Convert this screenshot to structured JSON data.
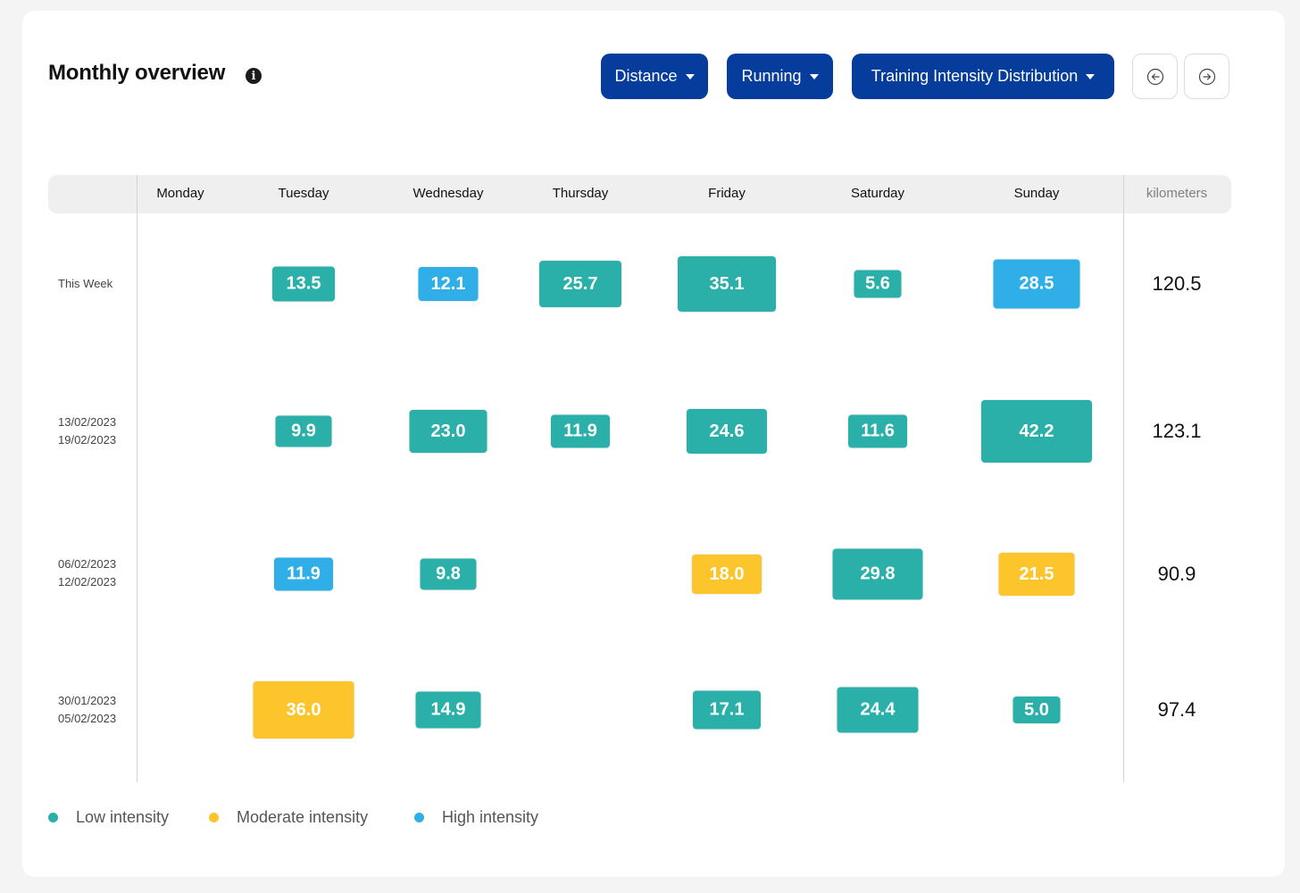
{
  "header": {
    "title": "Monthly overview",
    "info_icon": "info-icon",
    "dropdowns": [
      {
        "label": "Distance"
      },
      {
        "label": "Running"
      },
      {
        "label": "Training Intensity Distribution"
      }
    ],
    "nav_prev_icon": "arrow-left-circle-icon",
    "nav_next_icon": "arrow-right-circle-icon"
  },
  "columns": [
    "Monday",
    "Tuesday",
    "Wednesday",
    "Thursday",
    "Friday",
    "Saturday",
    "Sunday"
  ],
  "unit_label": "kilometers",
  "colors": {
    "low": "#2ab0a8",
    "moderate": "#fbc52b",
    "high": "#30aee8"
  },
  "rows": [
    {
      "label_lines": [
        "This Week"
      ],
      "total": "120.5",
      "cells": [
        {
          "day": "Tuesday",
          "value": "13.5",
          "intensity": "low"
        },
        {
          "day": "Wednesday",
          "value": "12.1",
          "intensity": "high"
        },
        {
          "day": "Thursday",
          "value": "25.7",
          "intensity": "low"
        },
        {
          "day": "Friday",
          "value": "35.1",
          "intensity": "low"
        },
        {
          "day": "Saturday",
          "value": "5.6",
          "intensity": "low"
        },
        {
          "day": "Sunday",
          "value": "28.5",
          "intensity": "high"
        }
      ]
    },
    {
      "label_lines": [
        "13/02/2023",
        "19/02/2023"
      ],
      "total": "123.1",
      "cells": [
        {
          "day": "Tuesday",
          "value": "9.9",
          "intensity": "low"
        },
        {
          "day": "Wednesday",
          "value": "23.0",
          "intensity": "low"
        },
        {
          "day": "Thursday",
          "value": "11.9",
          "intensity": "low"
        },
        {
          "day": "Friday",
          "value": "24.6",
          "intensity": "low"
        },
        {
          "day": "Saturday",
          "value": "11.6",
          "intensity": "low"
        },
        {
          "day": "Sunday",
          "value": "42.2",
          "intensity": "low"
        }
      ]
    },
    {
      "label_lines": [
        "06/02/2023",
        "12/02/2023"
      ],
      "total": "90.9",
      "cells": [
        {
          "day": "Tuesday",
          "value": "11.9",
          "intensity": "high"
        },
        {
          "day": "Wednesday",
          "value": "9.8",
          "intensity": "low"
        },
        {
          "day": "Friday",
          "value": "18.0",
          "intensity": "moderate"
        },
        {
          "day": "Saturday",
          "value": "29.8",
          "intensity": "low"
        },
        {
          "day": "Sunday",
          "value": "21.5",
          "intensity": "moderate"
        }
      ]
    },
    {
      "label_lines": [
        "30/01/2023",
        "05/02/2023"
      ],
      "total": "97.4",
      "cells": [
        {
          "day": "Tuesday",
          "value": "36.0",
          "intensity": "moderate"
        },
        {
          "day": "Wednesday",
          "value": "14.9",
          "intensity": "low"
        },
        {
          "day": "Friday",
          "value": "17.1",
          "intensity": "low"
        },
        {
          "day": "Saturday",
          "value": "24.4",
          "intensity": "low"
        },
        {
          "day": "Sunday",
          "value": "5.0",
          "intensity": "low"
        }
      ]
    }
  ],
  "legend": [
    {
      "label": "Low intensity",
      "intensity": "low"
    },
    {
      "label": "Moderate intensity",
      "intensity": "moderate"
    },
    {
      "label": "High intensity",
      "intensity": "high"
    }
  ]
}
